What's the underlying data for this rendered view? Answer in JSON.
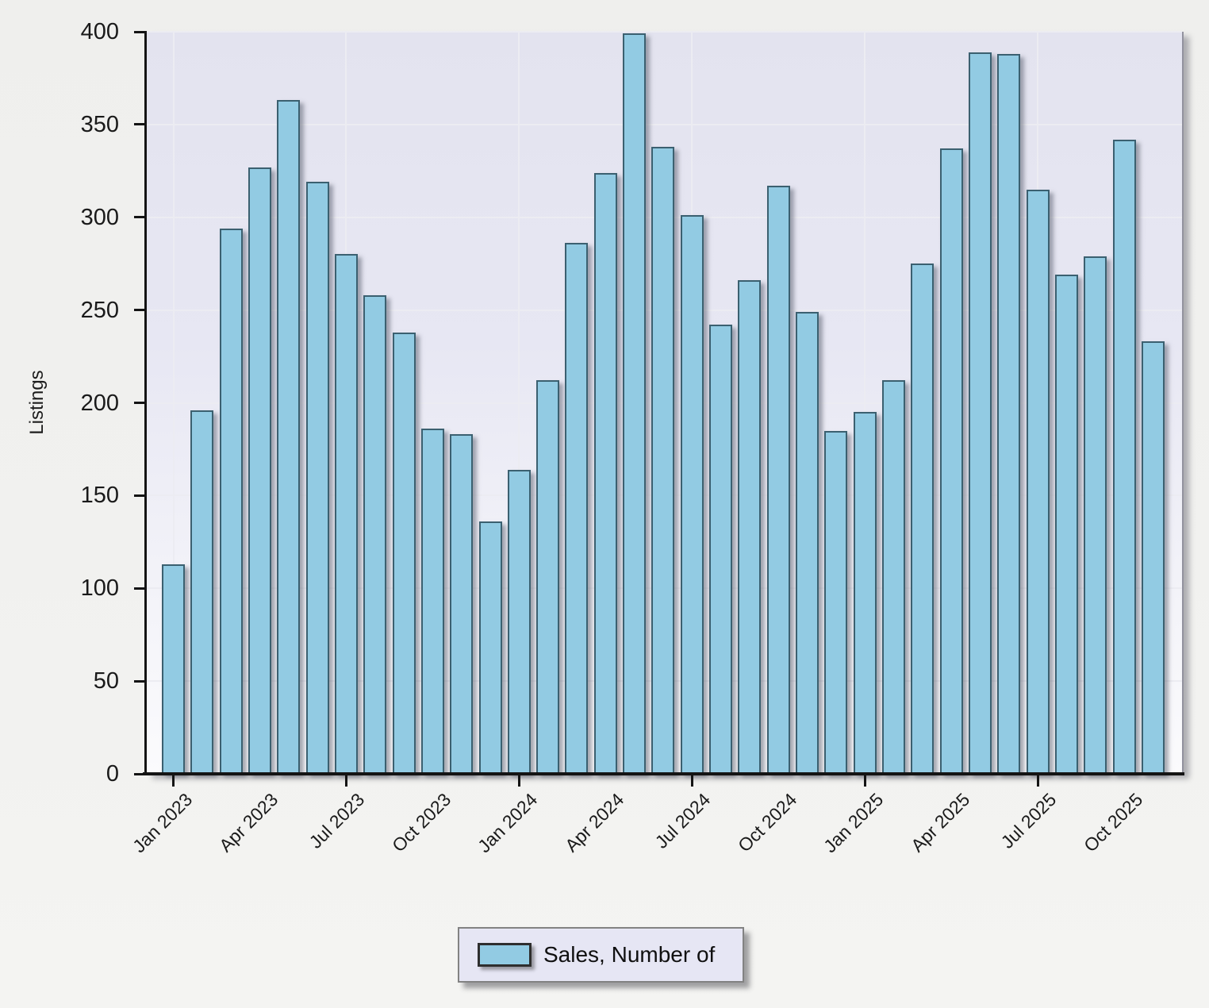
{
  "chart_data": {
    "type": "bar",
    "title": "",
    "xlabel": "",
    "ylabel": "Listings",
    "ylim": [
      0,
      400
    ],
    "ytick_step": 50,
    "grid": true,
    "legend_position": "bottom",
    "categories": [
      "Jan 2023",
      "Feb 2023",
      "Mar 2023",
      "Apr 2023",
      "May 2023",
      "Jun 2023",
      "Jul 2023",
      "Aug 2023",
      "Sep 2023",
      "Oct 2023",
      "Nov 2023",
      "Dec 2023",
      "Jan 2024",
      "Feb 2024",
      "Mar 2024",
      "Apr 2024",
      "May 2024",
      "Jun 2024",
      "Jul 2024",
      "Aug 2024",
      "Sep 2024",
      "Oct 2024",
      "Nov 2024",
      "Dec 2024",
      "Jan 2025",
      "Feb 2025",
      "Mar 2025",
      "Apr 2025",
      "May 2025",
      "Jun 2025",
      "Jul 2025",
      "Aug 2025",
      "Sep 2025",
      "Oct 2025",
      "Nov 2025"
    ],
    "series": [
      {
        "name": "Sales, Number of",
        "color": "#92cbe3",
        "values": [
          113,
          196,
          294,
          327,
          363,
          319,
          280,
          258,
          238,
          186,
          183,
          136,
          164,
          212,
          286,
          324,
          399,
          338,
          301,
          242,
          266,
          317,
          249,
          185,
          195,
          212,
          275,
          337,
          389,
          388,
          315,
          269,
          279,
          342,
          233
        ]
      }
    ],
    "ytick_labels": [
      "0",
      "50",
      "100",
      "150",
      "200",
      "250",
      "300",
      "350",
      "400"
    ],
    "xtick_labels": [
      "Jan 2023",
      "Apr 2023",
      "Jul 2023",
      "Oct 2023",
      "Jan 2024",
      "Apr 2024",
      "Jul 2024",
      "Oct 2024",
      "Jan 2025",
      "Apr 2025",
      "Jul 2025",
      "Oct 2025"
    ],
    "xtick_label_indices": [
      0,
      3,
      6,
      9,
      12,
      15,
      18,
      21,
      24,
      27,
      30,
      33
    ],
    "xtick_mark_indices": [
      0,
      6,
      12,
      18,
      24,
      30
    ]
  },
  "colors": {
    "bar_fill": "#92cbe3",
    "bar_border": "#3b6070",
    "axis": "#141414",
    "gridline": "#ececf2",
    "plot_bg_top": "#e3e3ef",
    "plot_bg_bottom": "#fbfbfd",
    "legend_bg": "#e6e6f4",
    "page_bg": "#f0f0ee"
  }
}
